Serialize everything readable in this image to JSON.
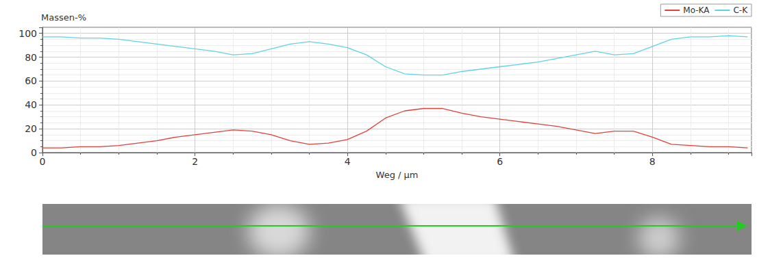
{
  "chart_data": {
    "type": "line",
    "y_label": "Massen-%",
    "x_label": "Weg / µm",
    "x": [
      0,
      0.25,
      0.5,
      0.75,
      1,
      1.25,
      1.5,
      1.75,
      2,
      2.25,
      2.5,
      2.75,
      3,
      3.25,
      3.5,
      3.75,
      4,
      4.25,
      4.5,
      4.75,
      5,
      5.25,
      5.5,
      5.75,
      6,
      6.25,
      6.5,
      6.75,
      7,
      7.25,
      7.5,
      7.75,
      8,
      8.25,
      8.5,
      8.75,
      9,
      9.25
    ],
    "series": [
      {
        "name": "Mo-KA",
        "color": "#e0413b",
        "values": [
          4,
          4,
          5,
          5,
          6,
          8,
          10,
          13,
          15,
          17,
          19,
          18,
          15,
          10,
          7,
          8,
          11,
          18,
          29,
          35,
          37,
          37,
          33,
          30,
          28,
          26,
          24,
          22,
          19,
          16,
          18,
          18,
          13,
          7,
          6,
          5,
          5,
          4
        ]
      },
      {
        "name": "C-K",
        "color": "#5fd3e6",
        "values": [
          97,
          97,
          96,
          96,
          95,
          93,
          91,
          89,
          87,
          85,
          82,
          83,
          87,
          91,
          93,
          91,
          88,
          82,
          72,
          66,
          65,
          65,
          68,
          70,
          72,
          74,
          76,
          79,
          82,
          85,
          82,
          83,
          89,
          95,
          97,
          97,
          98,
          97
        ]
      }
    ],
    "xlim": [
      0,
      9.3
    ],
    "xticks": [
      0,
      2,
      4,
      6,
      8
    ],
    "ylim": [
      0,
      105
    ],
    "yticks": [
      0,
      20,
      40,
      60,
      80,
      100
    ],
    "grid": true,
    "legend": "top-right"
  }
}
